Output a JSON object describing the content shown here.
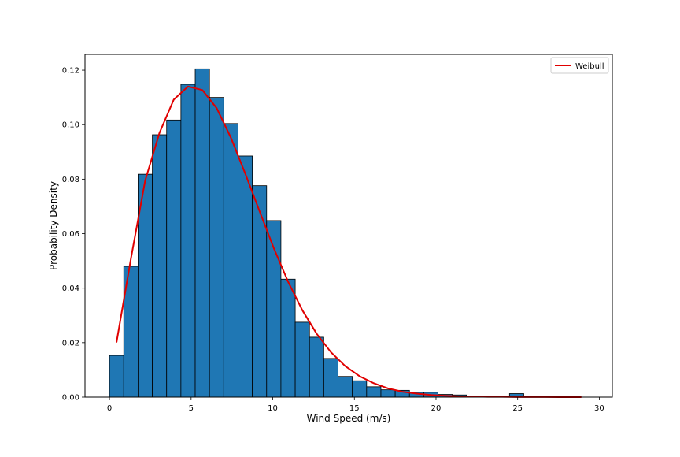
{
  "chart_data": {
    "type": "bar",
    "xlabel": "Wind Speed (m/s)",
    "ylabel": "Probability Density",
    "xlim": [
      -1.5,
      30.8
    ],
    "ylim": [
      0,
      0.1258
    ],
    "xticks": [
      0,
      5,
      10,
      15,
      20,
      25,
      30
    ],
    "xtick_labels": [
      "0",
      "5",
      "10",
      "15",
      "20",
      "25",
      "30"
    ],
    "yticks": [
      0.0,
      0.02,
      0.04,
      0.06,
      0.08,
      0.1,
      0.12
    ],
    "ytick_labels": [
      "0.00",
      "0.02",
      "0.04",
      "0.06",
      "0.08",
      "0.10",
      "0.12"
    ],
    "grid": false,
    "legend": {
      "position": "top-right",
      "entries": [
        {
          "label": "Weibull",
          "color": "#e00000",
          "kind": "line"
        }
      ]
    },
    "histogram": {
      "bin_edges": [
        0.0,
        0.875,
        1.75,
        2.625,
        3.5,
        4.375,
        5.25,
        6.125,
        7.0,
        7.875,
        8.75,
        9.625,
        10.5,
        11.375,
        12.25,
        13.125,
        14.0,
        14.875,
        15.75,
        16.625,
        17.5,
        18.375,
        19.25,
        20.125,
        21.0,
        21.875,
        22.75,
        23.625,
        24.5,
        25.375,
        26.25,
        27.125,
        28.0,
        28.875
      ],
      "density": [
        0.0153,
        0.048,
        0.0818,
        0.0963,
        0.1017,
        0.1148,
        0.1205,
        0.11,
        0.1004,
        0.0885,
        0.0776,
        0.0648,
        0.0433,
        0.0275,
        0.022,
        0.0142,
        0.0076,
        0.006,
        0.0038,
        0.0027,
        0.0025,
        0.0018,
        0.0018,
        0.001,
        0.0008,
        0.0003,
        0.0003,
        0.0004,
        0.0013,
        0.0004,
        0.0002,
        0.0002,
        0.0001
      ],
      "fill_color": "#1f77b4",
      "edge_color": "#000000"
    },
    "series": [
      {
        "name": "Weibull",
        "color": "#e00000",
        "x": [
          0.4375,
          1.3125,
          2.1875,
          3.0625,
          3.9375,
          4.8125,
          5.6875,
          6.5625,
          7.4375,
          8.3125,
          9.1875,
          10.0625,
          10.9375,
          11.8125,
          12.6875,
          13.5625,
          14.4375,
          15.3125,
          16.1875,
          17.0625,
          17.9375,
          18.8125,
          19.6875,
          20.5625,
          21.4375,
          22.3125,
          23.1875,
          24.0625,
          24.9375,
          25.8125,
          26.6875,
          27.5625,
          28.4375,
          28.875
        ],
        "y": [
          0.0203,
          0.0508,
          0.0795,
          0.097,
          0.1092,
          0.114,
          0.1127,
          0.1061,
          0.0952,
          0.0821,
          0.0683,
          0.0547,
          0.0424,
          0.0319,
          0.0233,
          0.0165,
          0.0114,
          0.0077,
          0.0051,
          0.0032,
          0.002,
          0.0013,
          0.0008,
          0.0005,
          0.0003,
          0.0002,
          0.0001,
          0.0001,
          5e-05,
          3e-05,
          2e-05,
          1e-05,
          1e-05,
          1e-05
        ]
      }
    ]
  }
}
